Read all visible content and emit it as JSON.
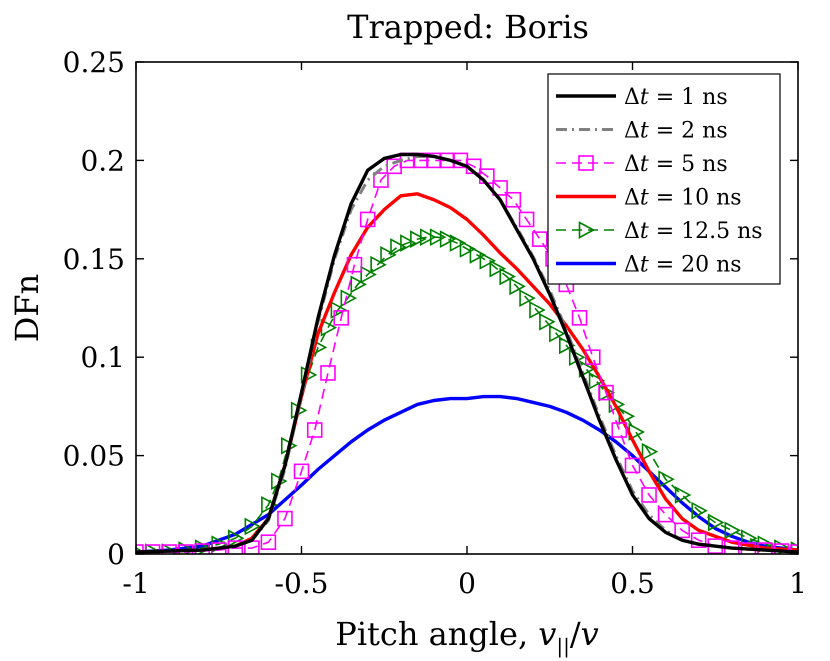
{
  "chart_data": {
    "type": "line",
    "title": "Trapped: Boris",
    "xlabel": "Pitch angle, v||/v",
    "xlabel_parts": {
      "prefix": "Pitch angle, ",
      "var": "v",
      "sub": "||",
      "slash": "/",
      "var2": "v"
    },
    "ylabel": "DFn",
    "xlim": [
      -1,
      1
    ],
    "ylim": [
      0,
      0.25
    ],
    "xticks": [
      -1,
      -0.5,
      0,
      0.5,
      1
    ],
    "xtick_labels": [
      "-1",
      "-0.5",
      "0",
      "0.5",
      "1"
    ],
    "yticks": [
      0,
      0.05,
      0.1,
      0.15,
      0.2,
      0.25
    ],
    "ytick_labels": [
      "0",
      "0.05",
      "0.1",
      "0.15",
      "0.2",
      "0.25"
    ],
    "grid": false,
    "legend_position": "top-right",
    "series": [
      {
        "name": "Δt = 1 ns",
        "delta": "Δ",
        "var": "t",
        "rest": " = 1 ns",
        "color": "#000000",
        "dash": "solid",
        "marker": "none",
        "x": [
          -1,
          -0.9,
          -0.8,
          -0.7,
          -0.65,
          -0.6,
          -0.55,
          -0.5,
          -0.45,
          -0.4,
          -0.35,
          -0.3,
          -0.25,
          -0.2,
          -0.15,
          -0.1,
          -0.05,
          0,
          0.05,
          0.1,
          0.15,
          0.2,
          0.25,
          0.3,
          0.35,
          0.4,
          0.45,
          0.5,
          0.55,
          0.6,
          0.65,
          0.7,
          0.8,
          0.9,
          1
        ],
        "y": [
          0.001,
          0.0015,
          0.002,
          0.004,
          0.007,
          0.018,
          0.045,
          0.082,
          0.12,
          0.152,
          0.178,
          0.195,
          0.201,
          0.203,
          0.203,
          0.202,
          0.2,
          0.197,
          0.19,
          0.18,
          0.165,
          0.15,
          0.132,
          0.112,
          0.09,
          0.068,
          0.048,
          0.03,
          0.018,
          0.011,
          0.007,
          0.005,
          0.003,
          0.002,
          0.001
        ]
      },
      {
        "name": "Δt = 2 ns",
        "delta": "Δ",
        "var": "t",
        "rest": " = 2 ns",
        "color": "#808080",
        "dash": "dashdot",
        "marker": "none",
        "x": [
          -1,
          -0.9,
          -0.8,
          -0.7,
          -0.65,
          -0.6,
          -0.55,
          -0.5,
          -0.45,
          -0.4,
          -0.35,
          -0.3,
          -0.25,
          -0.2,
          -0.15,
          -0.1,
          -0.05,
          0,
          0.05,
          0.1,
          0.15,
          0.2,
          0.25,
          0.3,
          0.35,
          0.4,
          0.45,
          0.5,
          0.55,
          0.6,
          0.65,
          0.7,
          0.8,
          0.9,
          1
        ],
        "y": [
          0.001,
          0.0015,
          0.002,
          0.004,
          0.007,
          0.017,
          0.043,
          0.08,
          0.118,
          0.15,
          0.175,
          0.19,
          0.197,
          0.2,
          0.202,
          0.202,
          0.2,
          0.197,
          0.19,
          0.18,
          0.166,
          0.151,
          0.134,
          0.114,
          0.092,
          0.07,
          0.05,
          0.032,
          0.02,
          0.012,
          0.007,
          0.005,
          0.003,
          0.002,
          0.001
        ]
      },
      {
        "name": "Δt = 5 ns",
        "delta": "Δ",
        "var": "t",
        "rest": " = 5 ns",
        "color": "#ff00ff",
        "dash": "dash",
        "marker": "square",
        "x": [
          -1,
          -0.95,
          -0.9,
          -0.85,
          -0.8,
          -0.75,
          -0.7,
          -0.65,
          -0.6,
          -0.55,
          -0.5,
          -0.46,
          -0.42,
          -0.38,
          -0.34,
          -0.3,
          -0.26,
          -0.22,
          -0.18,
          -0.14,
          -0.1,
          -0.06,
          -0.02,
          0.02,
          0.06,
          0.1,
          0.14,
          0.18,
          0.22,
          0.26,
          0.3,
          0.34,
          0.38,
          0.42,
          0.46,
          0.5,
          0.55,
          0.6,
          0.65,
          0.7,
          0.75,
          0.8,
          0.85,
          0.9,
          0.95,
          1
        ],
        "y": [
          0.001,
          0.001,
          0.001,
          0.001,
          0.0015,
          0.002,
          0.003,
          0.003,
          0.006,
          0.018,
          0.042,
          0.063,
          0.092,
          0.12,
          0.147,
          0.17,
          0.19,
          0.197,
          0.2,
          0.2,
          0.2,
          0.2,
          0.2,
          0.197,
          0.192,
          0.186,
          0.18,
          0.17,
          0.16,
          0.15,
          0.137,
          0.12,
          0.1,
          0.082,
          0.063,
          0.045,
          0.03,
          0.02,
          0.012,
          0.007,
          0.004,
          0.003,
          0.002,
          0.002,
          0.0015,
          0.001
        ]
      },
      {
        "name": "Δt = 10 ns",
        "delta": "Δ",
        "var": "t",
        "rest": " = 10 ns",
        "color": "#ff0000",
        "dash": "solid",
        "marker": "none",
        "x": [
          -1,
          -0.9,
          -0.8,
          -0.7,
          -0.65,
          -0.6,
          -0.55,
          -0.5,
          -0.45,
          -0.4,
          -0.35,
          -0.3,
          -0.25,
          -0.2,
          -0.15,
          -0.1,
          -0.05,
          0,
          0.05,
          0.1,
          0.15,
          0.2,
          0.25,
          0.3,
          0.35,
          0.4,
          0.45,
          0.5,
          0.55,
          0.6,
          0.65,
          0.7,
          0.8,
          0.9,
          1
        ],
        "y": [
          0.001,
          0.0015,
          0.002,
          0.004,
          0.008,
          0.018,
          0.045,
          0.08,
          0.112,
          0.133,
          0.152,
          0.166,
          0.175,
          0.182,
          0.183,
          0.18,
          0.176,
          0.17,
          0.162,
          0.153,
          0.145,
          0.136,
          0.127,
          0.116,
          0.104,
          0.09,
          0.075,
          0.058,
          0.042,
          0.028,
          0.018,
          0.012,
          0.006,
          0.003,
          0.002
        ]
      },
      {
        "name": "Δt = 12.5 ns",
        "delta": "Δ",
        "var": "t",
        "rest": " = 12.5 ns",
        "color": "#008000",
        "dash": "dash",
        "marker": "triangle-right",
        "x": [
          -1,
          -0.95,
          -0.9,
          -0.85,
          -0.8,
          -0.75,
          -0.7,
          -0.65,
          -0.6,
          -0.57,
          -0.54,
          -0.51,
          -0.48,
          -0.45,
          -0.42,
          -0.39,
          -0.36,
          -0.33,
          -0.3,
          -0.27,
          -0.24,
          -0.21,
          -0.18,
          -0.15,
          -0.12,
          -0.09,
          -0.06,
          -0.03,
          0,
          0.03,
          0.06,
          0.09,
          0.12,
          0.15,
          0.18,
          0.21,
          0.24,
          0.27,
          0.3,
          0.33,
          0.36,
          0.39,
          0.42,
          0.45,
          0.48,
          0.51,
          0.55,
          0.6,
          0.65,
          0.7,
          0.75,
          0.8,
          0.85,
          0.9,
          0.95,
          1
        ],
        "y": [
          0.001,
          0.001,
          0.001,
          0.002,
          0.003,
          0.005,
          0.008,
          0.014,
          0.025,
          0.037,
          0.055,
          0.073,
          0.091,
          0.105,
          0.115,
          0.124,
          0.13,
          0.137,
          0.142,
          0.147,
          0.152,
          0.156,
          0.158,
          0.16,
          0.161,
          0.161,
          0.16,
          0.158,
          0.155,
          0.152,
          0.149,
          0.145,
          0.141,
          0.136,
          0.13,
          0.124,
          0.118,
          0.112,
          0.106,
          0.1,
          0.094,
          0.088,
          0.082,
          0.076,
          0.07,
          0.062,
          0.052,
          0.038,
          0.03,
          0.022,
          0.016,
          0.012,
          0.008,
          0.005,
          0.003,
          0.002
        ]
      },
      {
        "name": "Δt = 20 ns",
        "delta": "Δ",
        "var": "t",
        "rest": " = 20 ns",
        "color": "#0000ff",
        "dash": "solid",
        "marker": "none",
        "x": [
          -1,
          -0.9,
          -0.8,
          -0.7,
          -0.6,
          -0.5,
          -0.45,
          -0.4,
          -0.35,
          -0.3,
          -0.25,
          -0.2,
          -0.15,
          -0.1,
          -0.05,
          0,
          0.05,
          0.1,
          0.15,
          0.2,
          0.25,
          0.3,
          0.35,
          0.4,
          0.45,
          0.5,
          0.55,
          0.6,
          0.65,
          0.7,
          0.75,
          0.8,
          0.85,
          0.9,
          0.95,
          1
        ],
        "y": [
          0.001,
          0.002,
          0.004,
          0.01,
          0.02,
          0.035,
          0.043,
          0.05,
          0.057,
          0.063,
          0.068,
          0.072,
          0.076,
          0.078,
          0.079,
          0.079,
          0.08,
          0.08,
          0.079,
          0.077,
          0.075,
          0.072,
          0.068,
          0.063,
          0.057,
          0.05,
          0.042,
          0.034,
          0.026,
          0.019,
          0.013,
          0.009,
          0.006,
          0.004,
          0.003,
          0.002
        ]
      }
    ]
  }
}
